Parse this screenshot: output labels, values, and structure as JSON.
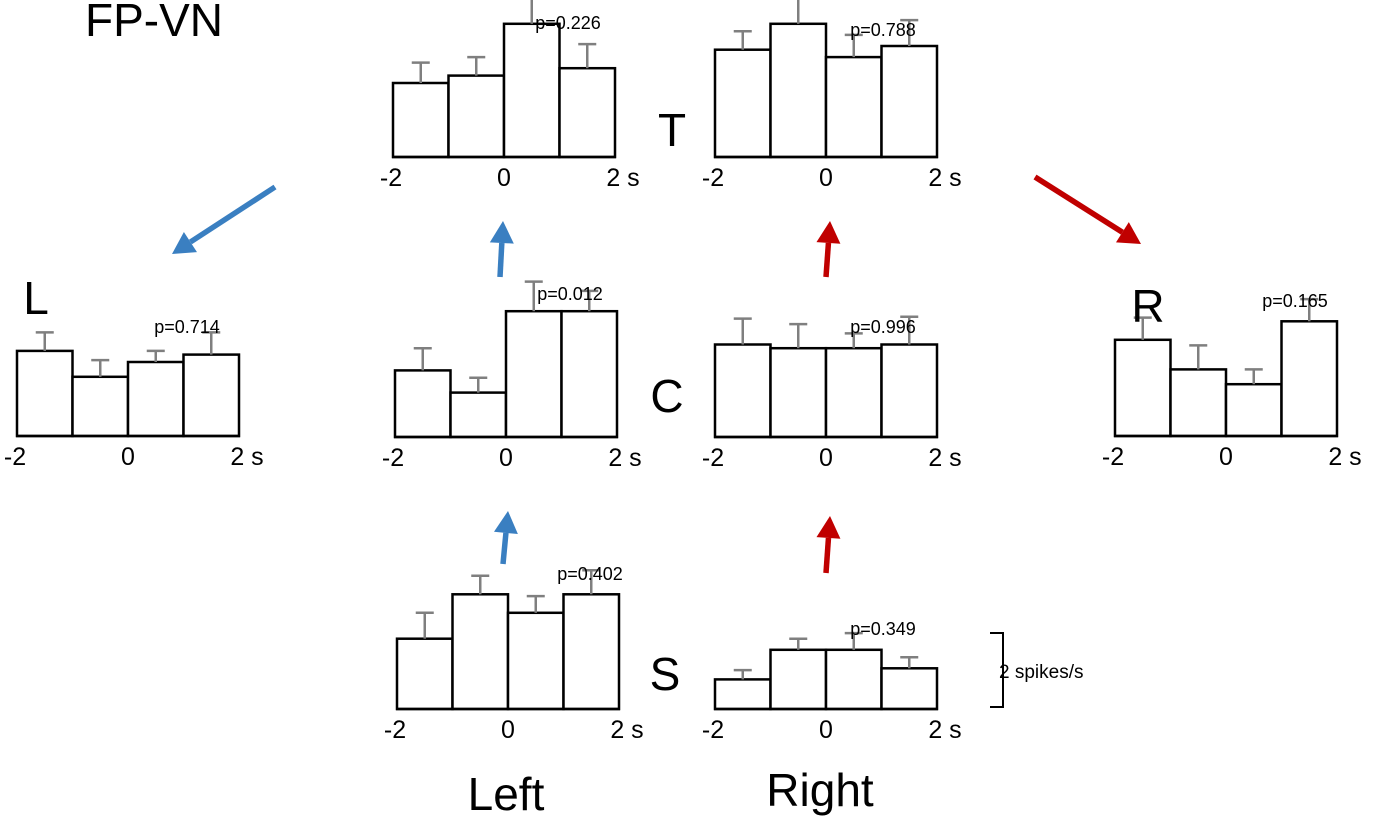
{
  "figure_label": "FP-VN",
  "column_labels": {
    "left": "Left",
    "right": "Right"
  },
  "scale_bar": {
    "label": "2 spikes/s",
    "value": 2
  },
  "colors": {
    "left_arrow": "#3a7fc1",
    "right_arrow": "#c00000",
    "bar_fill": "#ffffff",
    "bar_stroke": "#000000",
    "error_bar": "#7f7f7f"
  },
  "chart_data": [
    {
      "type": "bar",
      "panel_label": "T",
      "side": "left",
      "pvalue": "p=0.226",
      "x_ticks": [
        "-2",
        "0",
        "2 s"
      ],
      "values": [
        2.0,
        2.2,
        3.6,
        2.4
      ],
      "errors": [
        0.55,
        0.5,
        0.7,
        0.65
      ]
    },
    {
      "type": "bar",
      "panel_label": "",
      "side": "right",
      "pvalue": "p=0.788",
      "x_ticks": [
        "-2",
        "0",
        "2 s"
      ],
      "values": [
        2.9,
        3.6,
        2.7,
        3.0
      ],
      "errors": [
        0.5,
        0.75,
        0.6,
        0.7
      ]
    },
    {
      "type": "bar",
      "panel_label": "C",
      "side": "left",
      "pvalue": "p=0.012",
      "x_ticks": [
        "-2",
        "0",
        "2 s"
      ],
      "values": [
        1.8,
        1.2,
        3.4,
        3.4
      ],
      "errors": [
        0.6,
        0.4,
        0.8,
        0.55
      ]
    },
    {
      "type": "bar",
      "panel_label": "",
      "side": "right",
      "pvalue": "p=0.996",
      "x_ticks": [
        "-2",
        "0",
        "2 s"
      ],
      "values": [
        2.5,
        2.4,
        2.4,
        2.5
      ],
      "errors": [
        0.7,
        0.65,
        0.4,
        0.75
      ]
    },
    {
      "type": "bar",
      "panel_label": "S",
      "side": "left",
      "pvalue": "p=0.402",
      "x_ticks": [
        "-2",
        "0",
        "2 s"
      ],
      "values": [
        1.9,
        3.1,
        2.6,
        3.1
      ],
      "errors": [
        0.7,
        0.5,
        0.45,
        0.65
      ]
    },
    {
      "type": "bar",
      "panel_label": "",
      "side": "right",
      "pvalue": "p=0.349",
      "x_ticks": [
        "-2",
        "0",
        "2 s"
      ],
      "values": [
        0.8,
        1.6,
        1.6,
        1.1
      ],
      "errors": [
        0.25,
        0.3,
        0.45,
        0.3
      ]
    },
    {
      "type": "bar",
      "panel_label": "L",
      "side": "left",
      "pvalue": "p=0.714",
      "x_ticks": [
        "-2",
        "0",
        "2 s"
      ],
      "values": [
        2.3,
        1.6,
        2.0,
        2.2
      ],
      "errors": [
        0.5,
        0.45,
        0.3,
        0.6
      ]
    },
    {
      "type": "bar",
      "panel_label": "R",
      "side": "right",
      "pvalue": "p=0.165",
      "x_ticks": [
        "-2",
        "0",
        "2 s"
      ],
      "values": [
        2.6,
        1.8,
        1.4,
        3.1
      ],
      "errors": [
        0.6,
        0.65,
        0.4,
        0.6
      ]
    }
  ]
}
